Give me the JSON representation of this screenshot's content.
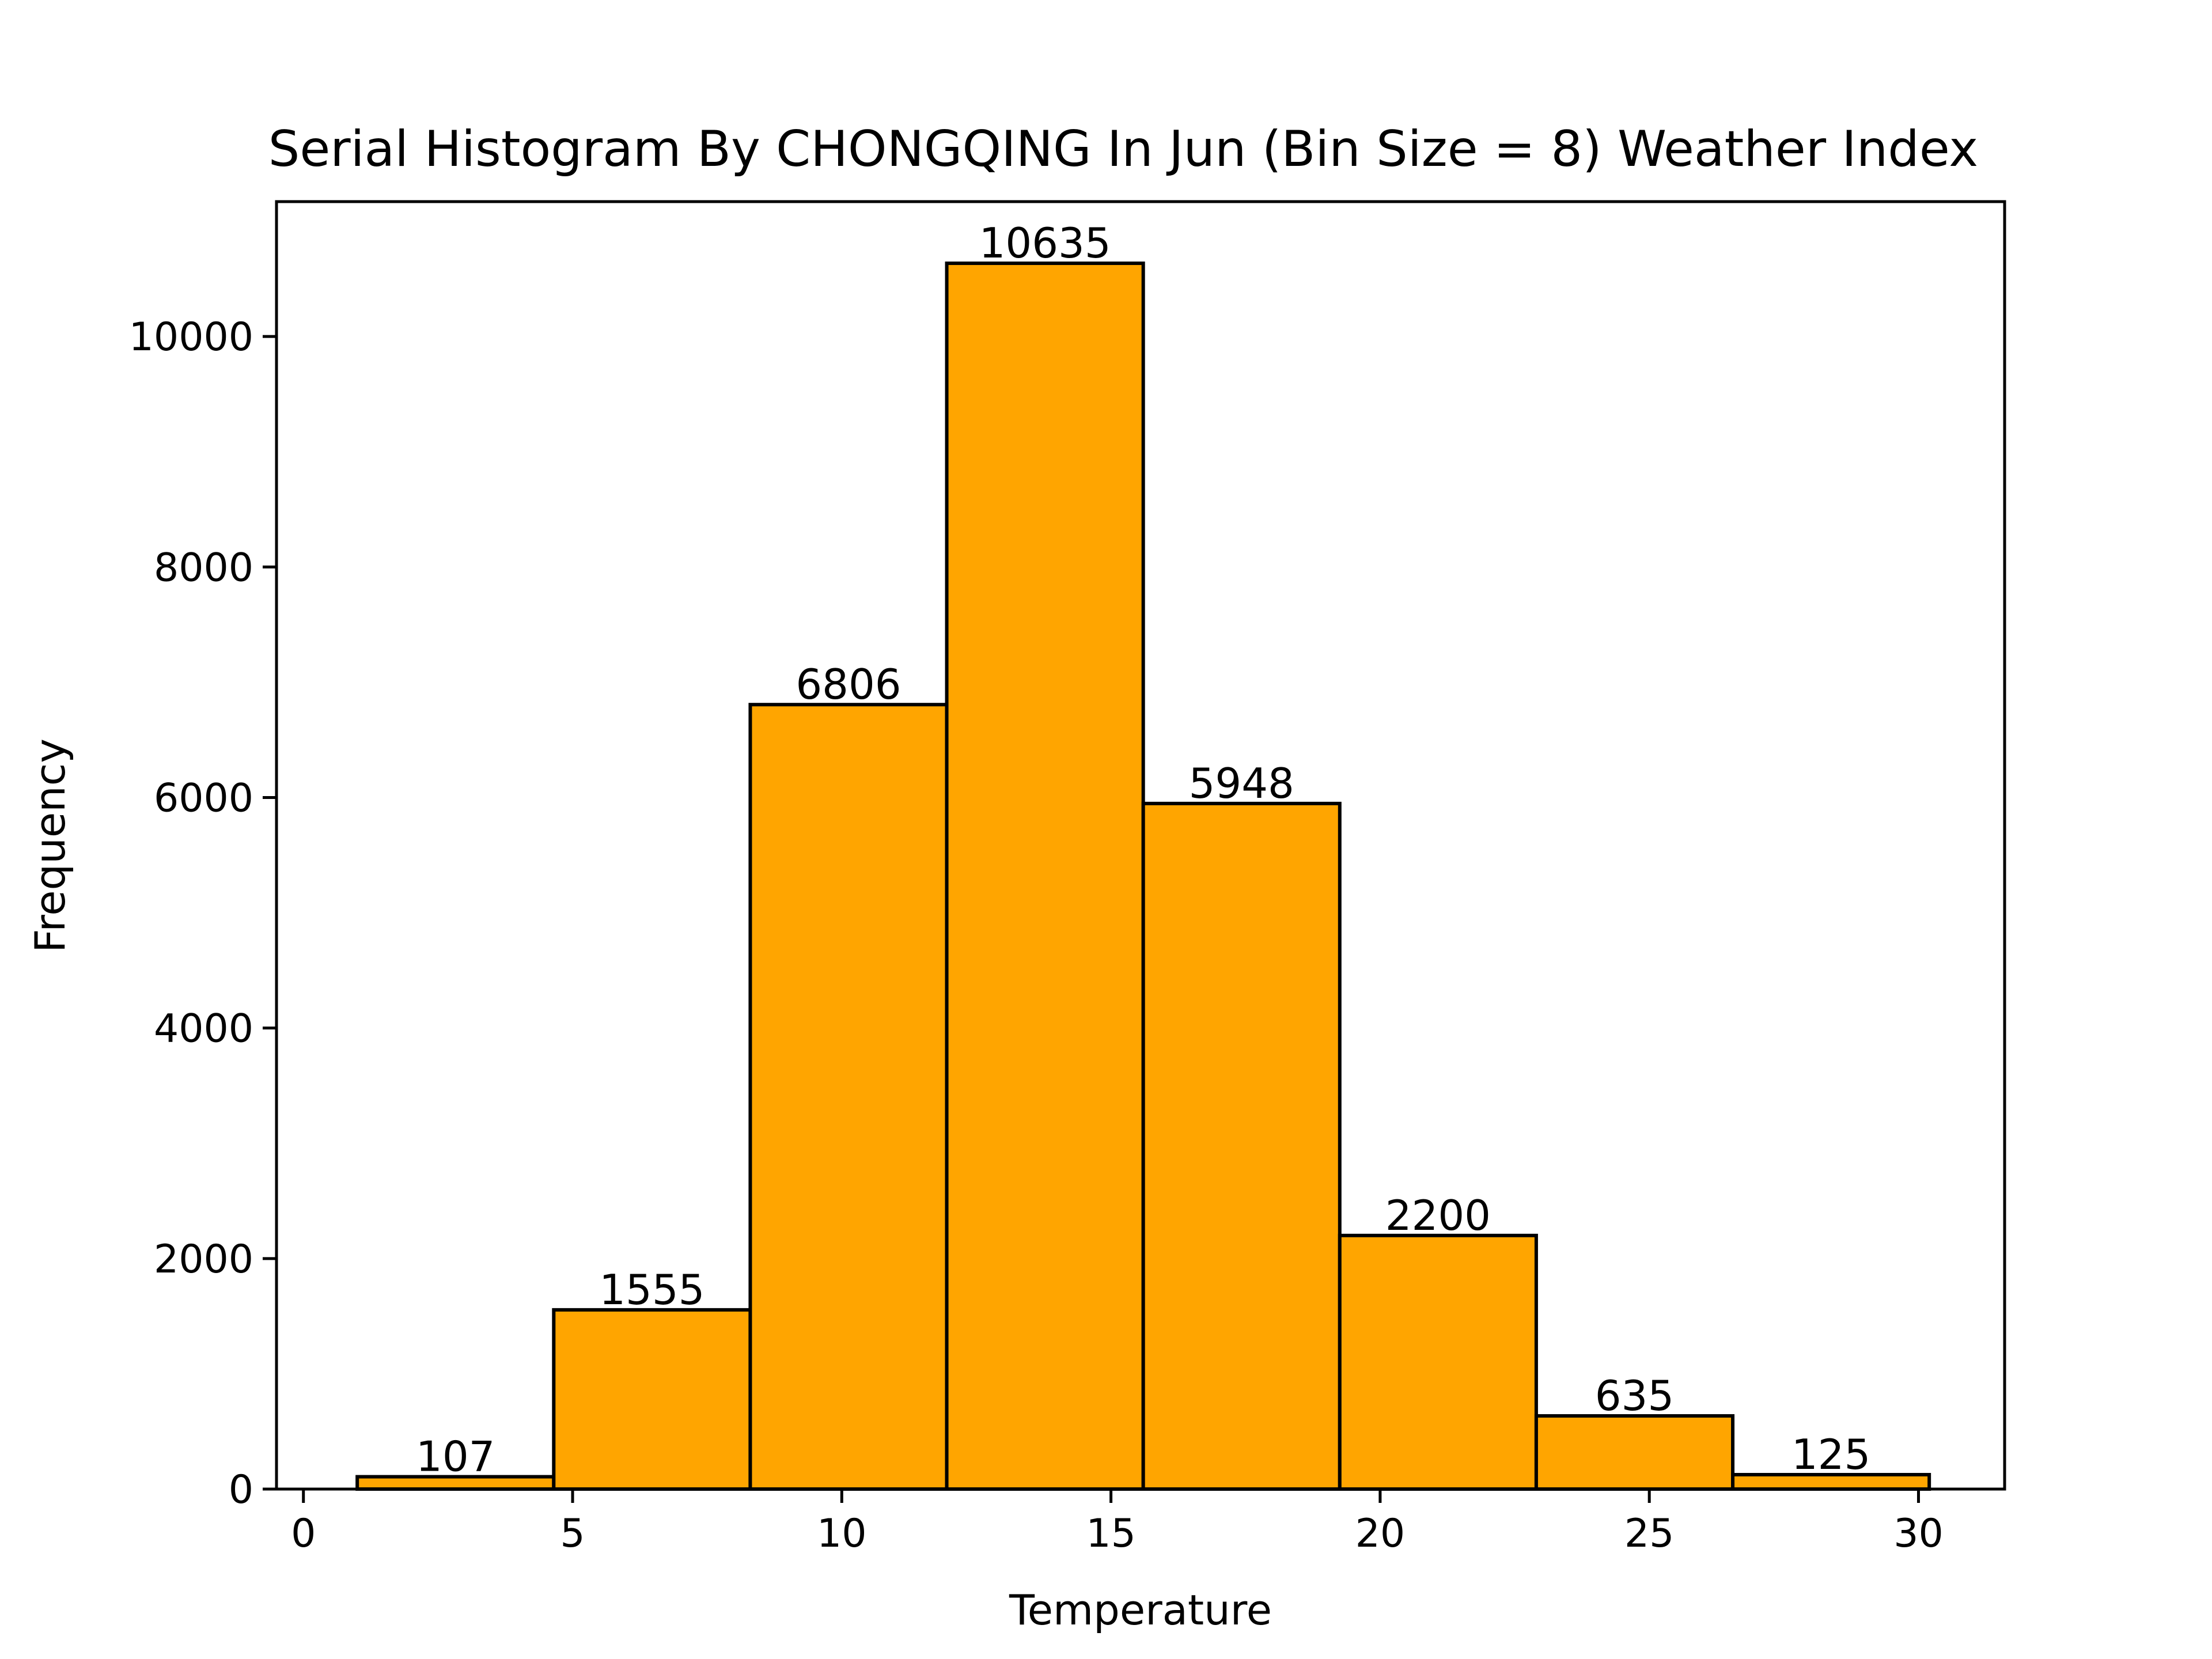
{
  "chart_data": {
    "type": "bar",
    "title": "Serial Histogram By CHONGQING In Jun (Bin Size = 8) Weather Index",
    "xlabel": "Temperature",
    "ylabel": "Frequency",
    "bin_edges": [
      1.0,
      4.65,
      8.3,
      11.95,
      15.6,
      19.25,
      22.9,
      26.55,
      30.2
    ],
    "values": [
      107,
      1555,
      6806,
      10635,
      5948,
      2200,
      635,
      125
    ],
    "value_labels": [
      "107",
      "1555",
      "6806",
      "10635",
      "5948",
      "2200",
      "635",
      "125"
    ],
    "xlim": [
      -0.5,
      31.6
    ],
    "ylim": [
      0,
      11170
    ],
    "x_ticks": [
      0,
      5,
      10,
      15,
      20,
      25,
      30
    ],
    "x_tick_labels": [
      "0",
      "5",
      "10",
      "15",
      "20",
      "25",
      "30"
    ],
    "y_ticks": [
      0,
      2000,
      4000,
      6000,
      8000,
      10000
    ],
    "y_tick_labels": [
      "0",
      "2000",
      "4000",
      "6000",
      "8000",
      "10000"
    ],
    "grid": false,
    "bar_color": "#ffa500",
    "edge_color": "#000000"
  }
}
